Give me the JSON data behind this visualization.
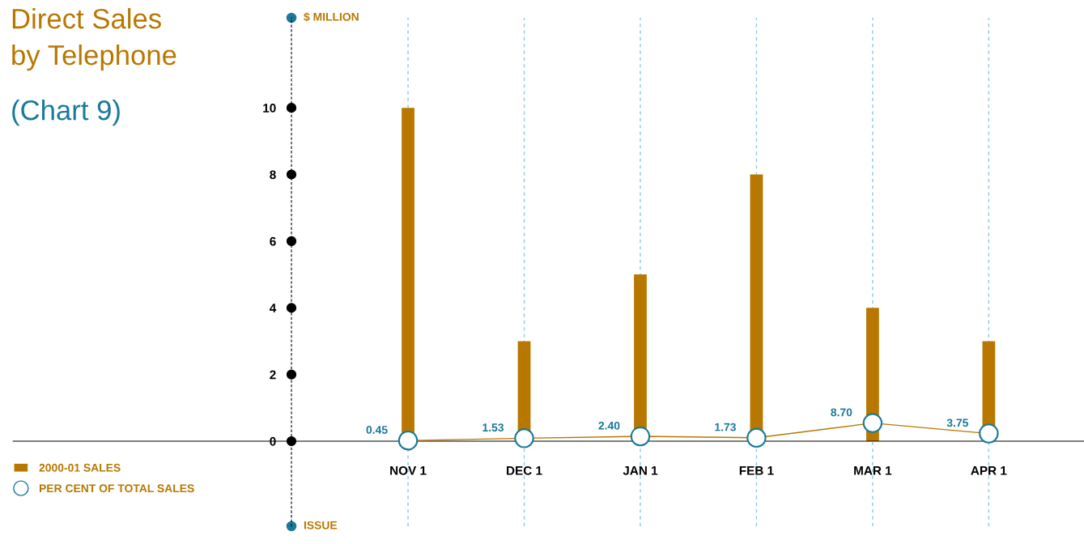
{
  "chart_data": {
    "type": "bar",
    "title": "Direct Sales\nby Telephone",
    "subtitle": "(Chart 9)",
    "ylabel": "$ MILLION",
    "xlabel": "ISSUE",
    "categories": [
      "NOV 1",
      "DEC 1",
      "JAN 1",
      "FEB 1",
      "MAR 1",
      "APR 1"
    ],
    "series": [
      {
        "name": "2000-01 SALES",
        "color": "#b87800",
        "values": [
          10,
          3,
          5,
          8,
          4,
          3
        ]
      },
      {
        "name": "PER CENT OF TOTAL SALES",
        "type": "line",
        "axis": "y2",
        "color": "#1a7a9a",
        "values": [
          0.45,
          1.53,
          2.4,
          1.73,
          8.7,
          3.75
        ],
        "value_labels": [
          "0.45",
          "1.53",
          "2.40",
          "1.73",
          "8.70",
          "3.75"
        ]
      }
    ],
    "ylim": [
      -2.55,
      12.7
    ],
    "yticks": [
      0,
      2,
      4,
      6,
      8,
      10
    ],
    "y2lim": [
      -40,
      200
    ],
    "grid": "x",
    "legend": "bottom left",
    "marker": "circle"
  }
}
